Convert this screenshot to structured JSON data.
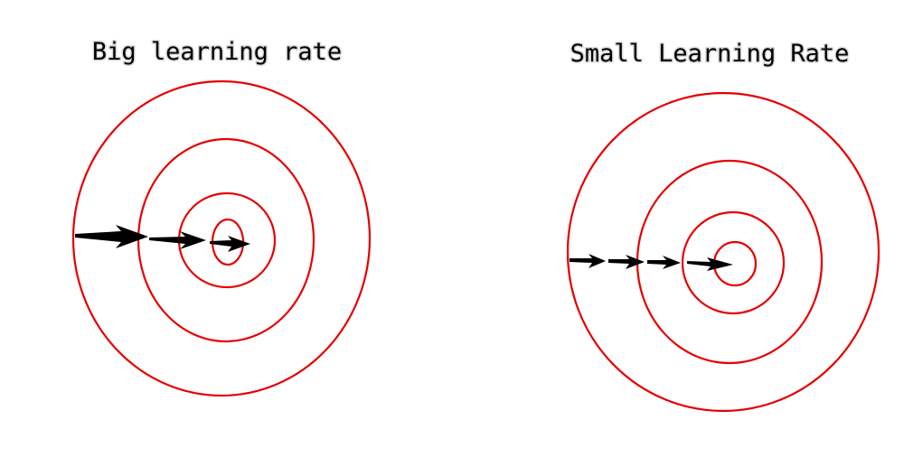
{
  "colors": {
    "contour": "#e60000",
    "arrow": "#000000",
    "background": "#ffffff"
  },
  "panels": [
    {
      "id": "big",
      "title": "Big learning rate",
      "contour_count": 4,
      "step_count": 3,
      "step_size": "large"
    },
    {
      "id": "small",
      "title": "Small Learning Rate",
      "contour_count": 4,
      "step_count": 4,
      "step_size": "small"
    }
  ]
}
